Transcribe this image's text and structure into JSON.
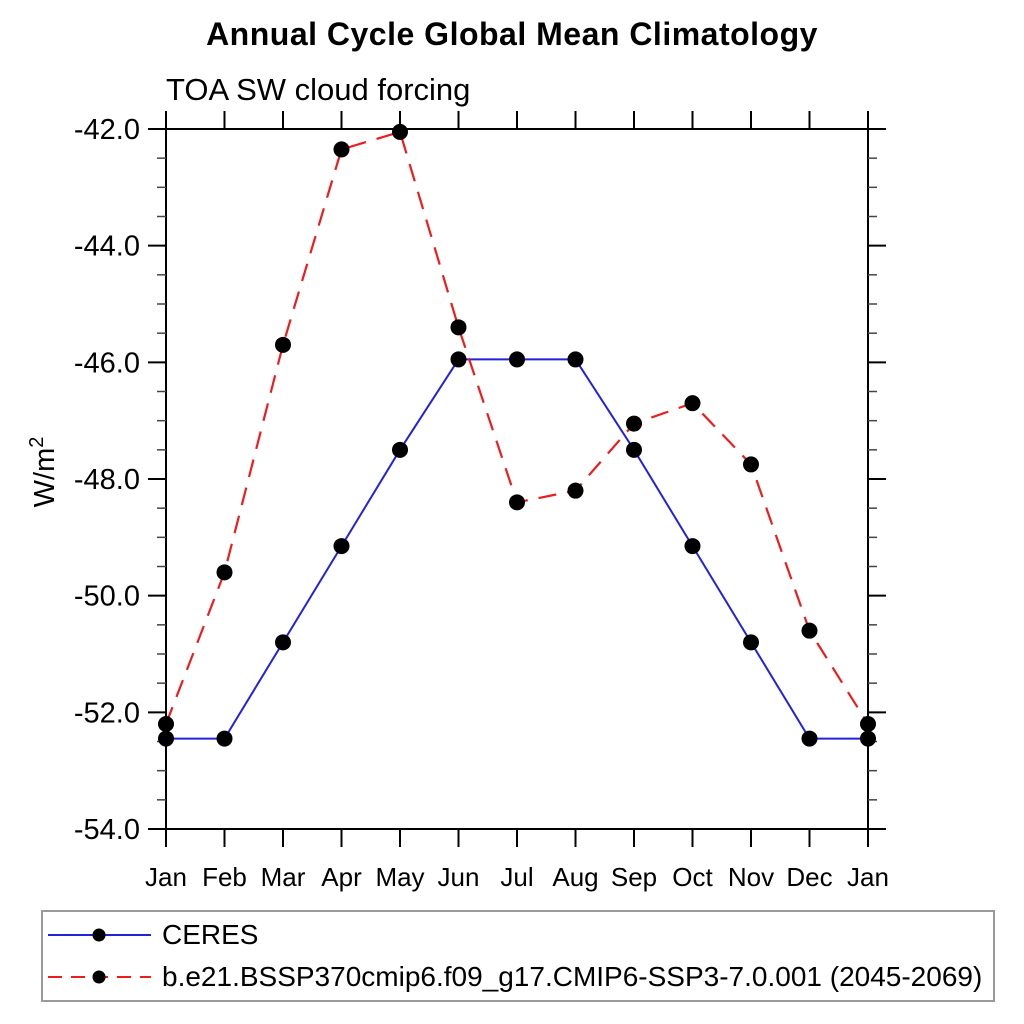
{
  "chart_data": {
    "type": "line",
    "title": "Annual Cycle Global Mean Climatology",
    "subtitle": "TOA SW cloud forcing",
    "ylabel_base": "W/m",
    "ylabel_sup": "2",
    "x_categories": [
      "Jan",
      "Feb",
      "Mar",
      "Apr",
      "May",
      "Jun",
      "Jul",
      "Aug",
      "Sep",
      "Oct",
      "Nov",
      "Dec",
      "Jan"
    ],
    "ylim": [
      -54.0,
      -42.0
    ],
    "ytick_major_step": 2.0,
    "ytick_minor_step": 0.5,
    "ytick_labels": [
      "-42.0",
      "-44.0",
      "-46.0",
      "-48.0",
      "-50.0",
      "-52.0",
      "-54.0"
    ],
    "grid": false,
    "axis_color": "#000000",
    "minor_tick_color": "#444444",
    "legend_position": "bottom-left-outside",
    "marker_color": "#000000",
    "series": [
      {
        "name": "CERES",
        "color": "#2222dd",
        "line_style": "solid",
        "line_width": 2,
        "marker": "circle",
        "marker_radius": 8,
        "values": [
          -52.45,
          -52.45,
          -50.8,
          -49.15,
          -47.5,
          -45.95,
          -45.95,
          -45.95,
          -47.5,
          -49.15,
          -50.8,
          -52.45,
          -52.45
        ]
      },
      {
        "name": "b.e21.BSSP370cmip6.f09_g17.CMIP6-SSP3-7.0.001 (2045-2069)",
        "color": "#ee1c1c",
        "line_style": "dashed",
        "dash_pattern": "18 11",
        "line_width": 2.2,
        "marker": "circle",
        "marker_radius": 8,
        "values": [
          -52.2,
          -49.6,
          -45.7,
          -42.35,
          -42.05,
          -45.4,
          -48.4,
          -48.2,
          -47.05,
          -46.7,
          -47.75,
          -50.6,
          -52.2
        ]
      }
    ]
  }
}
